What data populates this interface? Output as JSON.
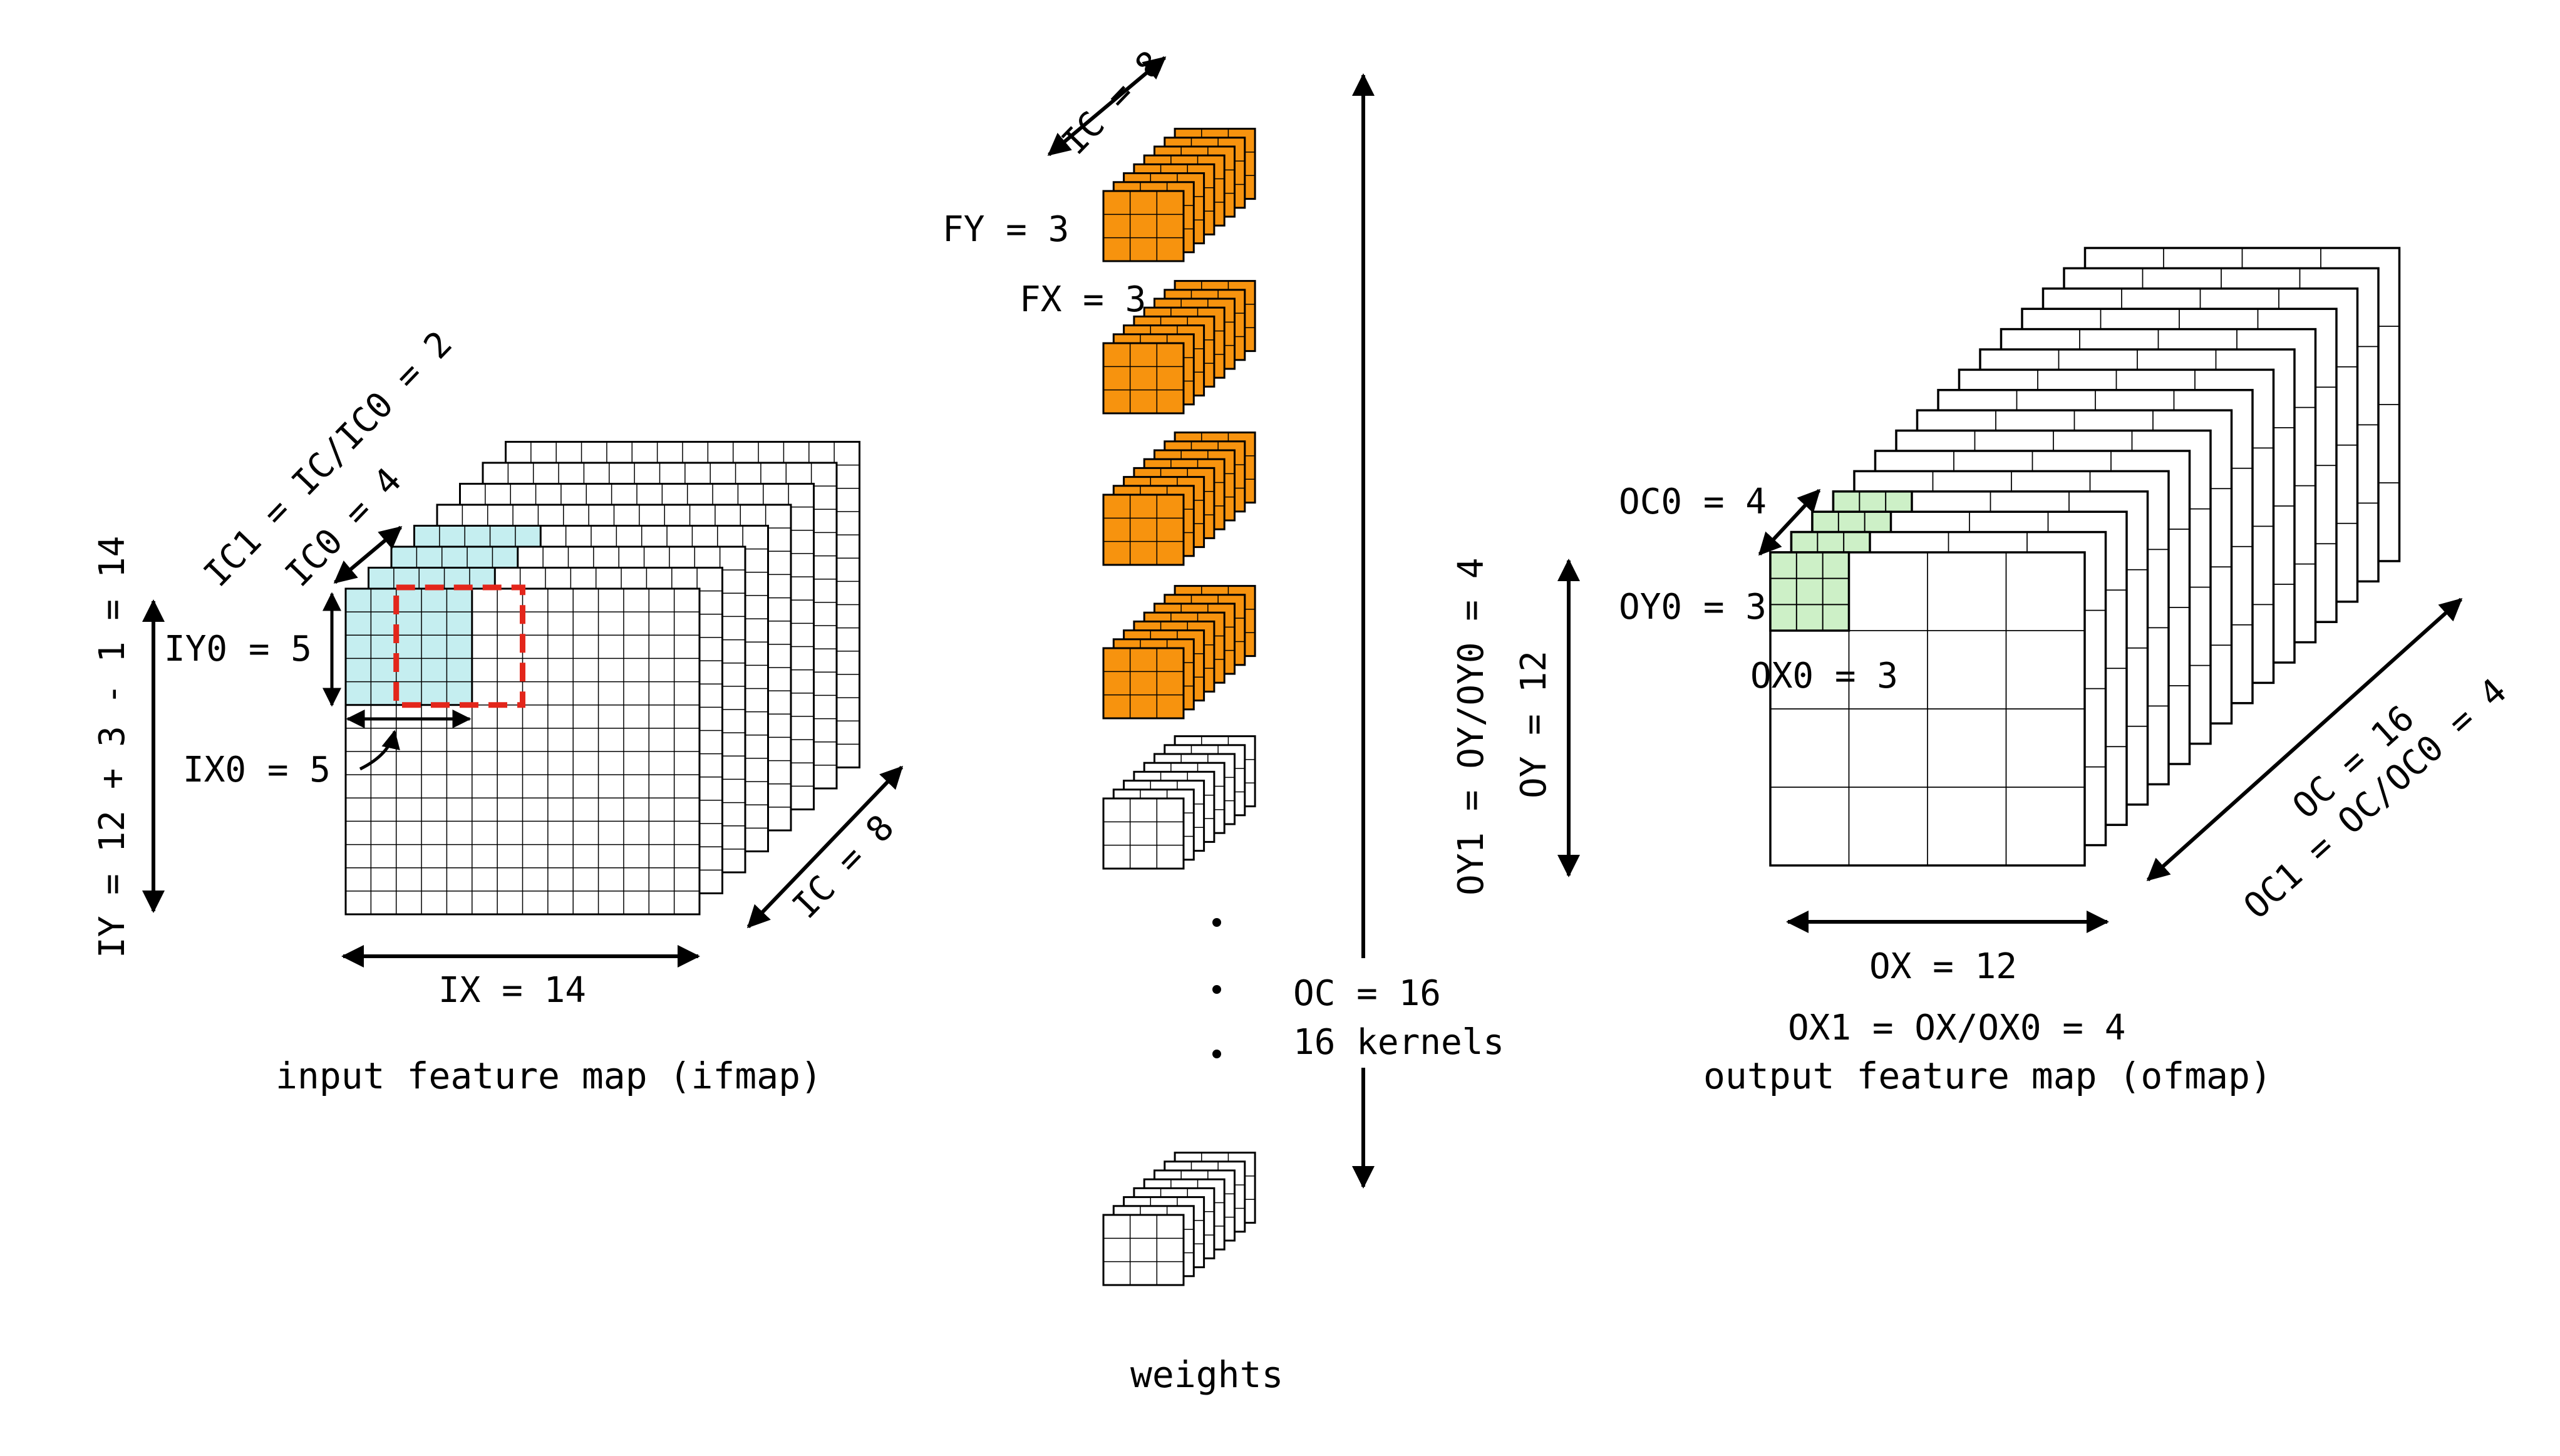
{
  "colors": {
    "ifmap_highlight": "#c5eef0",
    "kernel_fill": "#f7930e",
    "ofmap_highlight": "#cdf0c7",
    "window": "#e3261b",
    "line": "#000000",
    "background": "#ffffff"
  },
  "ifmap": {
    "caption": "input feature map (ifmap)",
    "ix": "IX = 14",
    "iy": "IY = 12 + 3 - 1 = 14",
    "ic": "IC = 8",
    "ic0": "IC0 = 4",
    "ic1": "IC1 = IC/IC0 = 2",
    "iy0": "IY0 = 5",
    "ix0": "IX0 = 5"
  },
  "weights": {
    "caption": "weights",
    "ic": "IC = 8",
    "fy": "FY = 3",
    "fx": "FX = 3",
    "oc": "OC = 16",
    "kernels": "16 kernels"
  },
  "ofmap": {
    "caption": "output feature map (ofmap)",
    "oc0": "OC0 = 4",
    "oy0": "OY0 = 3",
    "ox0": "OX0 = 3",
    "ox": "OX = 12",
    "ox1": "OX1 = OX/OX0 = 4",
    "oy": "OY = 12",
    "oy1": "OY1 = OY/OY0 = 4",
    "oc": "OC = 16",
    "oc1": "OC1 = OC/OC0 = 4"
  }
}
